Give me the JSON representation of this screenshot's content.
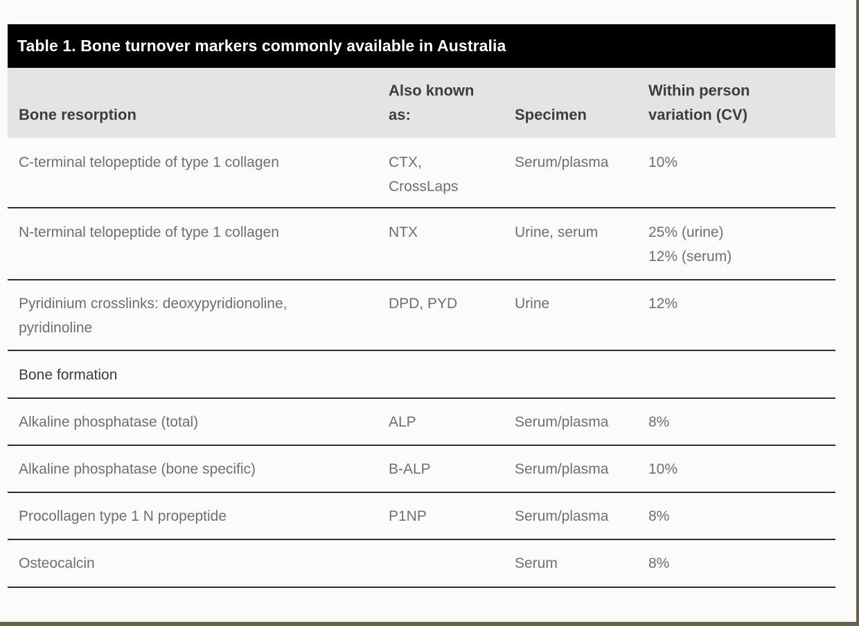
{
  "table": {
    "title": "Table 1. Bone turnover markers commonly available in Australia",
    "headers": {
      "col1": "Bone resorption",
      "col2": "Also known\nas:",
      "col3": "Specimen",
      "col4": "Within person\nvariation (CV)"
    },
    "resorption_rows": [
      {
        "marker": "C-terminal telopeptide of type 1 collagen",
        "aka": "CTX,\nCrossLaps",
        "specimen": "Serum/plasma",
        "cv": "10%"
      },
      {
        "marker": "N-terminal telopeptide of type 1 collagen",
        "aka": "NTX",
        "specimen": "Urine, serum",
        "cv": "25% (urine)\n12% (serum)"
      },
      {
        "marker": "Pyridinium crosslinks: deoxypyridionoline,\npyridinoline",
        "aka": "DPD, PYD",
        "specimen": "Urine",
        "cv": "12%"
      }
    ],
    "formation_label": "Bone formation",
    "formation_rows": [
      {
        "marker": "Alkaline phosphatase (total)",
        "aka": "ALP",
        "specimen": "Serum/plasma",
        "cv": "8%"
      },
      {
        "marker": "Alkaline phosphatase (bone specific)",
        "aka": "B-ALP",
        "specimen": "Serum/plasma",
        "cv": "10%"
      },
      {
        "marker": "Procollagen type 1 N propeptide",
        "aka": "P1NP",
        "specimen": "Serum/plasma",
        "cv": "8%"
      },
      {
        "marker": "Osteocalcin",
        "aka": "",
        "specimen": "Serum",
        "cv": "8%"
      }
    ]
  }
}
